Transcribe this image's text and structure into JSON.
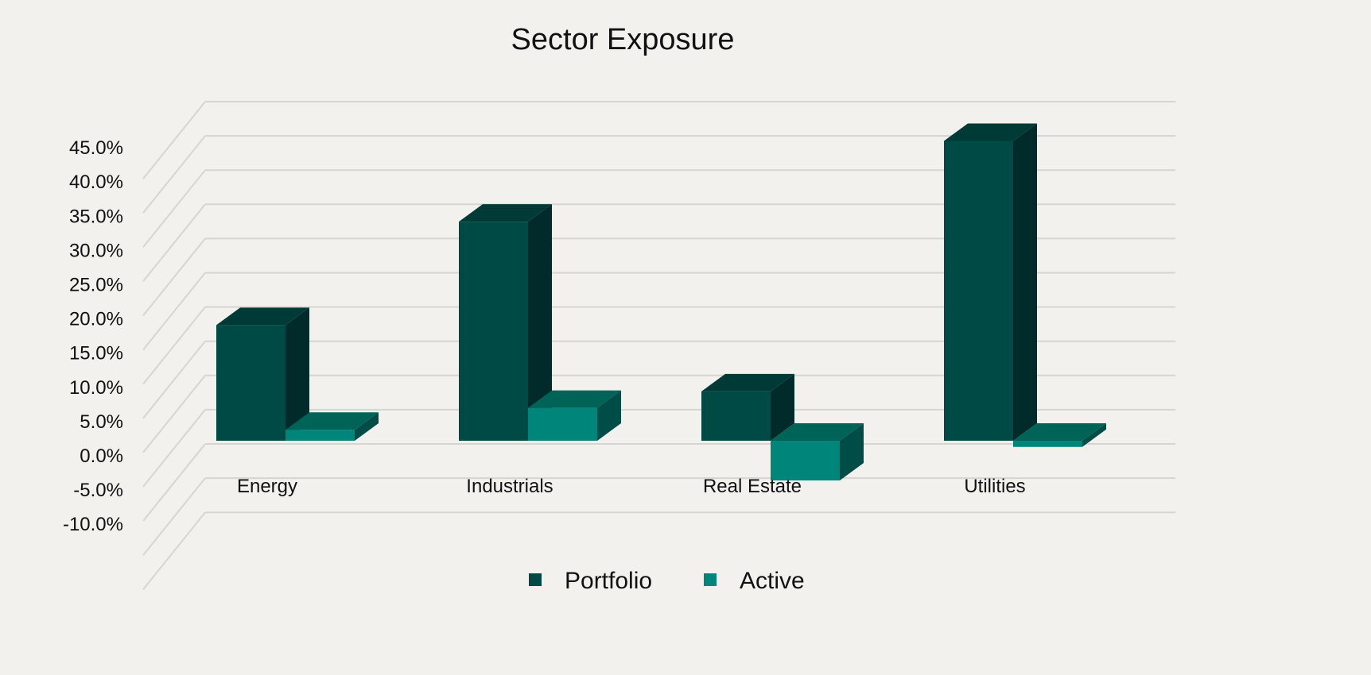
{
  "chart_data": {
    "type": "bar",
    "title": "Sector Exposure",
    "categories": [
      "Energy",
      "Industrials",
      "Real Estate",
      "Utilities"
    ],
    "series": [
      {
        "name": "Portfolio",
        "values": [
          16.9,
          32.0,
          7.2,
          43.8
        ]
      },
      {
        "name": "Active",
        "values": [
          1.6,
          4.8,
          -5.8,
          -0.9
        ]
      }
    ],
    "ylim": [
      -10,
      50
    ],
    "yticks": [
      "-10.0%",
      "-5.0%",
      "0.0%",
      "5.0%",
      "10.0%",
      "15.0%",
      "20.0%",
      "25.0%",
      "30.0%",
      "35.0%",
      "40.0%",
      "45.0%"
    ],
    "ytick_values": [
      -10,
      -5,
      0,
      5,
      10,
      15,
      20,
      25,
      30,
      35,
      40,
      45
    ],
    "grid": true,
    "three_d": true,
    "legend_position": "bottom",
    "colors": {
      "Portfolio": {
        "front": "#004a45",
        "top": "#003a36",
        "side": "#002b2a"
      },
      "Active": {
        "front": "#00857a",
        "top": "#006358",
        "side": "#004d47"
      },
      "grid": "#d6d5d2"
    }
  }
}
